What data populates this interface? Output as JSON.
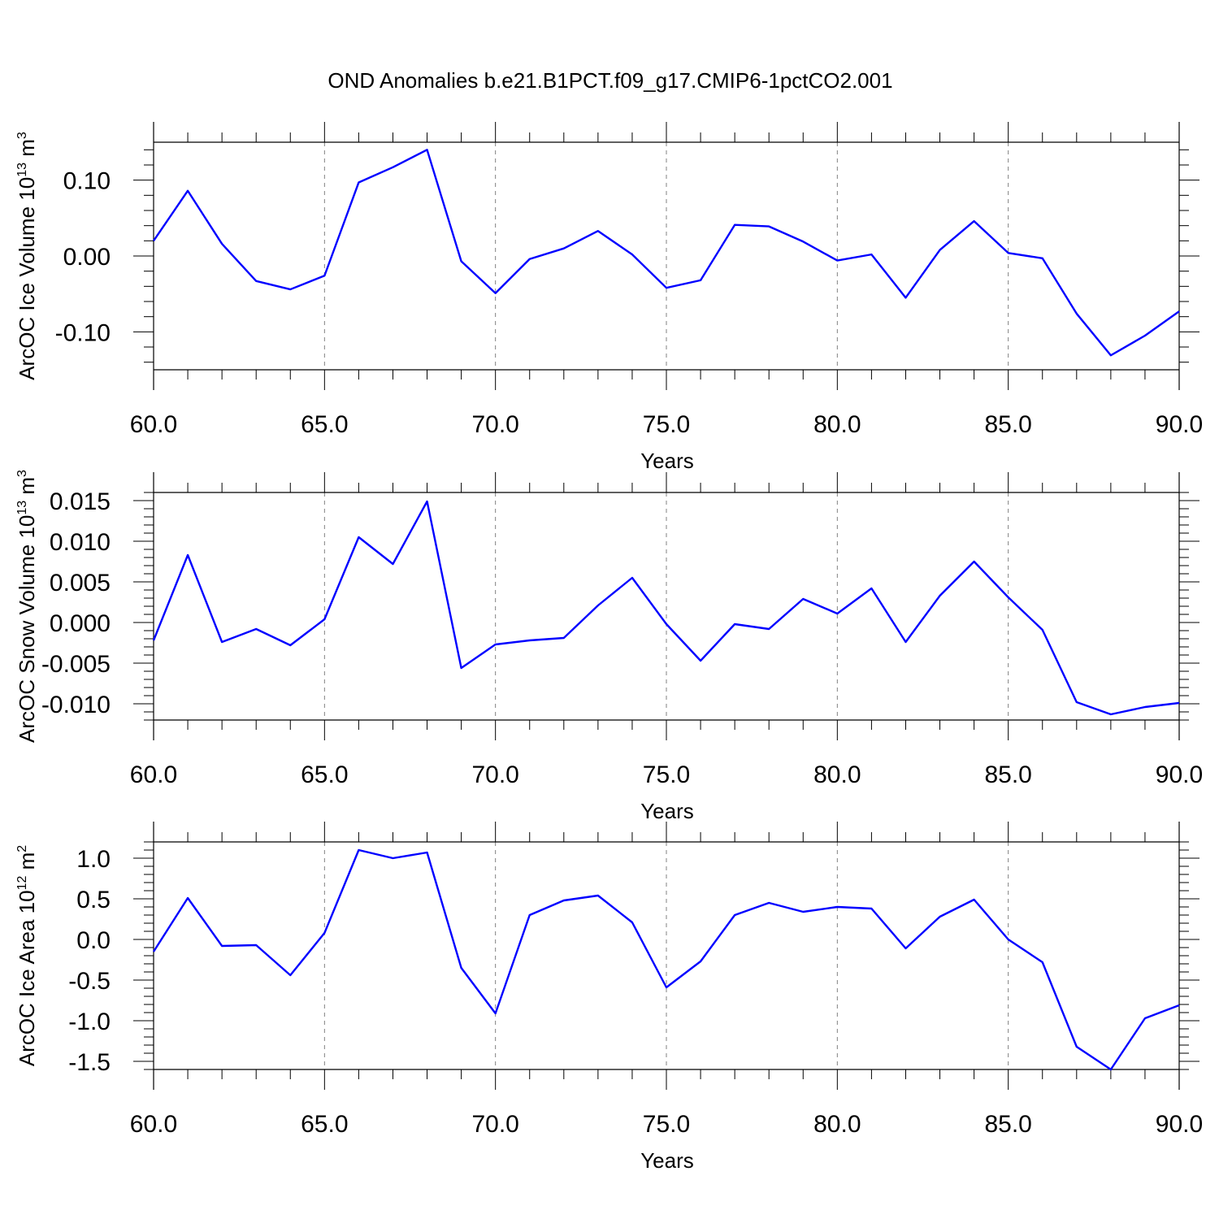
{
  "figure": {
    "title": "OND Anomalies b.e21.B1PCT.f09_g17.CMIP6-1pctCO2.001",
    "line_color": "#0000ff",
    "axis_color": "#000000",
    "grid_color": "#808080"
  },
  "chart_data": [
    {
      "type": "line",
      "xlabel": "Years",
      "ylabel_prefix": "ArcOC Ice Volume 10",
      "ylabel_exp": "13",
      "ylabel_unit": " m",
      "ylabel_unit_exp": "3",
      "xlim": [
        60,
        90
      ],
      "ylim": [
        -0.15,
        0.15
      ],
      "xticks": [
        60,
        65,
        70,
        75,
        80,
        85,
        90
      ],
      "xtick_labels": [
        "60.0",
        "65.0",
        "70.0",
        "75.0",
        "80.0",
        "85.0",
        "90.0"
      ],
      "yticks": [
        -0.1,
        0.0,
        0.1
      ],
      "ytick_labels": [
        "-0.10",
        "0.00",
        "0.10"
      ],
      "grid": "vertical dashed at major x ticks",
      "x": [
        60,
        61,
        62,
        63,
        64,
        65,
        66,
        67,
        68,
        69,
        70,
        71,
        72,
        73,
        74,
        75,
        76,
        77,
        78,
        79,
        80,
        81,
        82,
        83,
        84,
        85,
        86,
        87,
        88,
        89,
        90
      ],
      "series": [
        {
          "values": [
            0.02,
            0.086,
            0.016,
            -0.033,
            -0.044,
            -0.026,
            0.097,
            0.117,
            0.14,
            -0.007,
            -0.049,
            -0.004,
            0.01,
            0.033,
            0.002,
            -0.042,
            -0.032,
            0.041,
            0.039,
            0.019,
            -0.006,
            0.002,
            -0.055,
            0.008,
            0.046,
            0.004,
            -0.003,
            -0.076,
            -0.131,
            -0.105,
            -0.073
          ]
        }
      ]
    },
    {
      "type": "line",
      "xlabel": "Years",
      "ylabel_prefix": "ArcOC Snow Volume 10",
      "ylabel_exp": "13",
      "ylabel_unit": " m",
      "ylabel_unit_exp": "3",
      "xlim": [
        60,
        90
      ],
      "ylim": [
        -0.012,
        0.016
      ],
      "xticks": [
        60,
        65,
        70,
        75,
        80,
        85,
        90
      ],
      "xtick_labels": [
        "60.0",
        "65.0",
        "70.0",
        "75.0",
        "80.0",
        "85.0",
        "90.0"
      ],
      "yticks": [
        -0.01,
        -0.005,
        0.0,
        0.005,
        0.01,
        0.015
      ],
      "ytick_labels": [
        "-0.010",
        "-0.005",
        "0.000",
        "0.005",
        "0.010",
        "0.015"
      ],
      "grid": "vertical dashed at major x ticks",
      "x": [
        60,
        61,
        62,
        63,
        64,
        65,
        66,
        67,
        68,
        69,
        70,
        71,
        72,
        73,
        74,
        75,
        76,
        77,
        78,
        79,
        80,
        81,
        82,
        83,
        84,
        85,
        86,
        87,
        88,
        89,
        90
      ],
      "series": [
        {
          "values": [
            -0.0022,
            0.0083,
            -0.0024,
            -0.0008,
            -0.0028,
            0.0004,
            0.0105,
            0.0072,
            0.0149,
            -0.0056,
            -0.0027,
            -0.0022,
            -0.0019,
            0.0021,
            0.0055,
            -0.0002,
            -0.0047,
            -0.0002,
            -0.0008,
            0.0029,
            0.0011,
            0.0042,
            -0.0024,
            0.0033,
            0.0075,
            0.0031,
            -0.0009,
            -0.0098,
            -0.0113,
            -0.0104,
            -0.0099
          ]
        }
      ]
    },
    {
      "type": "line",
      "xlabel": "Years",
      "ylabel_prefix": "ArcOC Ice Area 10",
      "ylabel_exp": "12",
      "ylabel_unit": " m",
      "ylabel_unit_exp": "2",
      "xlim": [
        60,
        90
      ],
      "ylim": [
        -1.6,
        1.2
      ],
      "xticks": [
        60,
        65,
        70,
        75,
        80,
        85,
        90
      ],
      "xtick_labels": [
        "60.0",
        "65.0",
        "70.0",
        "75.0",
        "80.0",
        "85.0",
        "90.0"
      ],
      "yticks": [
        -1.5,
        -1.0,
        -0.5,
        0.0,
        0.5,
        1.0
      ],
      "ytick_labels": [
        "-1.5",
        "-1.0",
        "-0.5",
        "0.0",
        "0.5",
        "1.0"
      ],
      "grid": "vertical dashed at major x ticks",
      "x": [
        60,
        61,
        62,
        63,
        64,
        65,
        66,
        67,
        68,
        69,
        70,
        71,
        72,
        73,
        74,
        75,
        76,
        77,
        78,
        79,
        80,
        81,
        82,
        83,
        84,
        85,
        86,
        87,
        88,
        89,
        90
      ],
      "series": [
        {
          "values": [
            -0.15,
            0.51,
            -0.08,
            -0.07,
            -0.44,
            0.08,
            1.1,
            1.0,
            1.07,
            -0.35,
            -0.91,
            0.3,
            0.48,
            0.54,
            0.21,
            -0.59,
            -0.27,
            0.3,
            0.45,
            0.34,
            0.4,
            0.38,
            -0.11,
            0.28,
            0.49,
            0.0,
            -0.28,
            -1.32,
            -1.6,
            -0.97,
            -0.81
          ]
        }
      ]
    }
  ]
}
